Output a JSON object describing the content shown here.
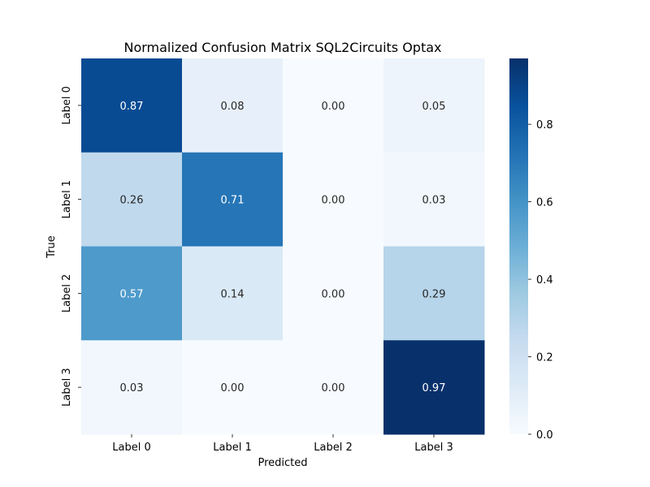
{
  "chart_data": {
    "type": "heatmap",
    "title": "Normalized Confusion Matrix SQL2Circuits Optax",
    "xlabel": "Predicted",
    "ylabel": "True",
    "x_categories": [
      "Label 0",
      "Label 1",
      "Label 2",
      "Label 3"
    ],
    "y_categories": [
      "Label 0",
      "Label 1",
      "Label 2",
      "Label 3"
    ],
    "values": [
      [
        0.87,
        0.08,
        0.0,
        0.05
      ],
      [
        0.26,
        0.71,
        0.0,
        0.03
      ],
      [
        0.57,
        0.14,
        0.0,
        0.29
      ],
      [
        0.03,
        0.0,
        0.0,
        0.97
      ]
    ],
    "colorbar": {
      "colormap": "Blues",
      "range": [
        0,
        0.97
      ],
      "ticks": [
        0.0,
        0.2,
        0.4,
        0.6,
        0.8
      ],
      "tick_labels": [
        "0.0",
        "0.2",
        "0.4",
        "0.6",
        "0.8"
      ]
    },
    "grid": false,
    "legend": "colorbar-right"
  }
}
